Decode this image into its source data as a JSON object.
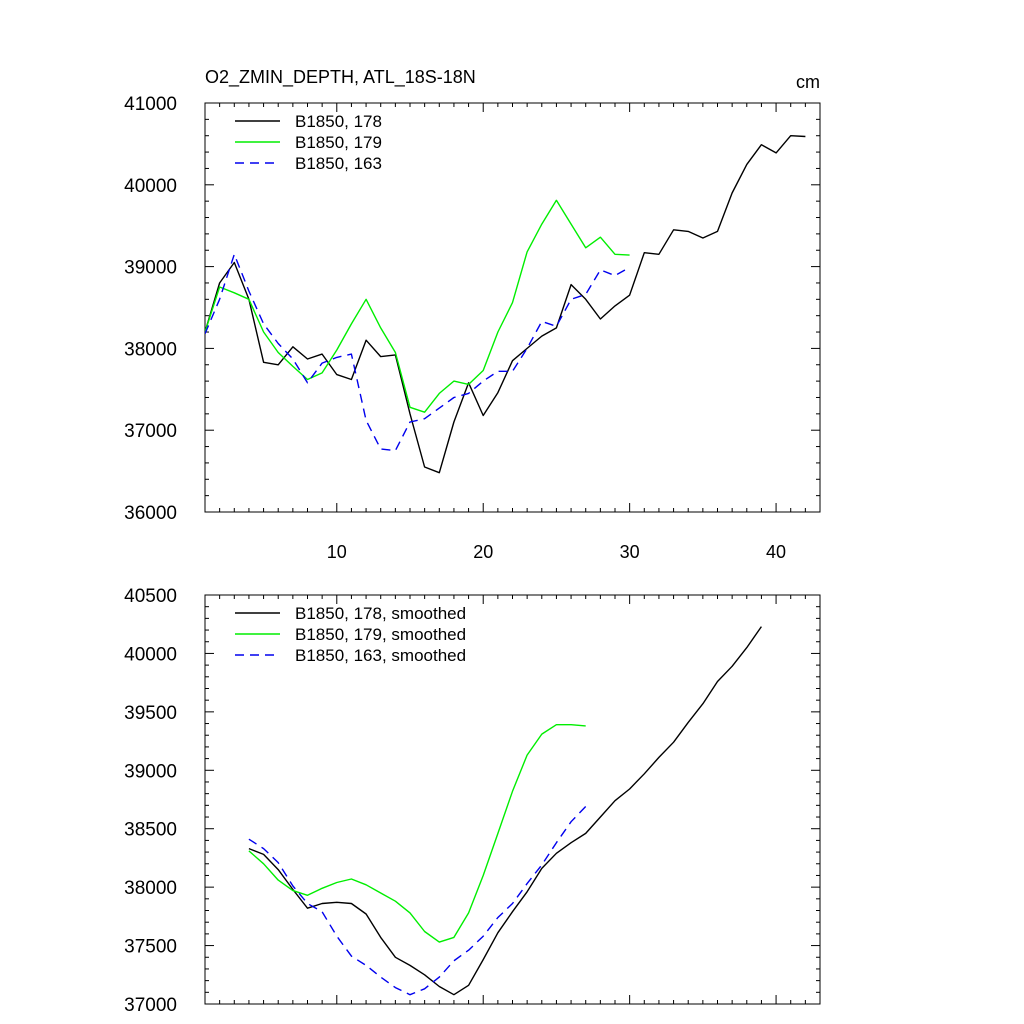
{
  "chart_data": [
    {
      "type": "line",
      "title": "O2_ZMIN_DEPTH, ATL_18S-18N",
      "units_label": "cm",
      "xlim": [
        1,
        43
      ],
      "ylim": [
        36000,
        41000
      ],
      "xticks": [
        10,
        20,
        30,
        40
      ],
      "yticks": [
        36000,
        37000,
        38000,
        39000,
        40000,
        41000
      ],
      "series": [
        {
          "name": "B1850, 178",
          "color": "#000000",
          "dash": "",
          "x": [
            1,
            2,
            3,
            4,
            5,
            6,
            7,
            8,
            9,
            10,
            11,
            12,
            13,
            14,
            15,
            16,
            17,
            18,
            19,
            20,
            21,
            22,
            23,
            24,
            25,
            26,
            27,
            28,
            29,
            30,
            31,
            32,
            33,
            34,
            35,
            36,
            37,
            38,
            39,
            40,
            41,
            42
          ],
          "y": [
            38200,
            38800,
            39050,
            38600,
            37830,
            37800,
            38020,
            37870,
            37930,
            37680,
            37620,
            38100,
            37900,
            37920,
            37200,
            36550,
            36480,
            37100,
            37580,
            37180,
            37460,
            37850,
            38000,
            38150,
            38250,
            38780,
            38600,
            38360,
            38520,
            38650,
            39170,
            39150,
            39450,
            39430,
            39350,
            39430,
            39900,
            40250,
            40490,
            40390,
            40600,
            40590
          ]
        },
        {
          "name": "B1850, 179",
          "color": "#00ee00",
          "dash": "",
          "x": [
            1,
            2,
            3,
            4,
            5,
            6,
            7,
            8,
            9,
            10,
            11,
            12,
            13,
            14,
            15,
            16,
            17,
            18,
            19,
            20,
            21,
            22,
            23,
            24,
            25,
            26,
            27,
            28,
            29,
            30
          ],
          "y": [
            38200,
            38750,
            38680,
            38600,
            38200,
            37950,
            37780,
            37620,
            37700,
            37980,
            38300,
            38600,
            38250,
            37950,
            37280,
            37220,
            37450,
            37600,
            37560,
            37730,
            38200,
            38560,
            39180,
            39520,
            39810,
            39520,
            39230,
            39360,
            39150,
            39140
          ]
        },
        {
          "name": "B1850, 163",
          "color": "#0000ee",
          "dash": "9,6",
          "x": [
            1,
            2,
            3,
            4,
            5,
            6,
            7,
            8,
            9,
            10,
            11,
            12,
            13,
            14,
            15,
            16,
            17,
            18,
            19,
            20,
            21,
            22,
            23,
            24,
            25,
            26,
            27,
            28,
            29,
            30
          ],
          "y": [
            38180,
            38600,
            39150,
            38700,
            38300,
            38060,
            37870,
            37580,
            37820,
            37890,
            37930,
            37120,
            36770,
            36750,
            37100,
            37140,
            37270,
            37400,
            37450,
            37600,
            37720,
            37720,
            38000,
            38330,
            38270,
            38600,
            38660,
            38960,
            38890,
            38990
          ]
        }
      ]
    },
    {
      "type": "line",
      "title": "",
      "xlim": [
        1,
        43
      ],
      "ylim": [
        37000,
        40500
      ],
      "yticks": [
        37000,
        37500,
        38000,
        38500,
        39000,
        39500,
        40000,
        40500
      ],
      "series": [
        {
          "name": "B1850, 178, smoothed",
          "color": "#000000",
          "dash": "",
          "x": [
            4,
            5,
            6,
            7,
            8,
            9,
            10,
            11,
            12,
            13,
            14,
            15,
            16,
            17,
            18,
            19,
            20,
            21,
            22,
            23,
            24,
            25,
            26,
            27,
            28,
            29,
            30,
            31,
            32,
            33,
            34,
            35,
            36,
            37,
            38,
            39
          ],
          "y": [
            38330,
            38280,
            38150,
            37980,
            37820,
            37860,
            37870,
            37860,
            37770,
            37570,
            37400,
            37330,
            37250,
            37150,
            37080,
            37160,
            37380,
            37610,
            37790,
            37960,
            38160,
            38290,
            38380,
            38460,
            38600,
            38740,
            38840,
            38970,
            39110,
            39240,
            39410,
            39570,
            39760,
            39890,
            40050,
            40230
          ]
        },
        {
          "name": "B1850, 179, smoothed",
          "color": "#00ee00",
          "dash": "",
          "x": [
            4,
            5,
            6,
            7,
            8,
            9,
            10,
            11,
            12,
            13,
            14,
            15,
            16,
            17,
            18,
            19,
            20,
            21,
            22,
            23,
            24,
            25,
            26,
            27
          ],
          "y": [
            38310,
            38200,
            38060,
            37970,
            37930,
            37990,
            38040,
            38070,
            38020,
            37950,
            37880,
            37780,
            37620,
            37530,
            37570,
            37780,
            38100,
            38460,
            38820,
            39130,
            39310,
            39390,
            39390,
            39380
          ]
        },
        {
          "name": "B1850, 163, smoothed",
          "color": "#0000ee",
          "dash": "9,6",
          "x": [
            4,
            5,
            6,
            7,
            8,
            9,
            10,
            11,
            12,
            13,
            14,
            15,
            16,
            17,
            18,
            19,
            20,
            21,
            22,
            23,
            24,
            25,
            26,
            27
          ],
          "y": [
            38410,
            38330,
            38210,
            38010,
            37860,
            37790,
            37580,
            37410,
            37330,
            37230,
            37140,
            37080,
            37130,
            37230,
            37370,
            37460,
            37580,
            37740,
            37860,
            38030,
            38190,
            38380,
            38560,
            38690
          ]
        }
      ]
    }
  ]
}
